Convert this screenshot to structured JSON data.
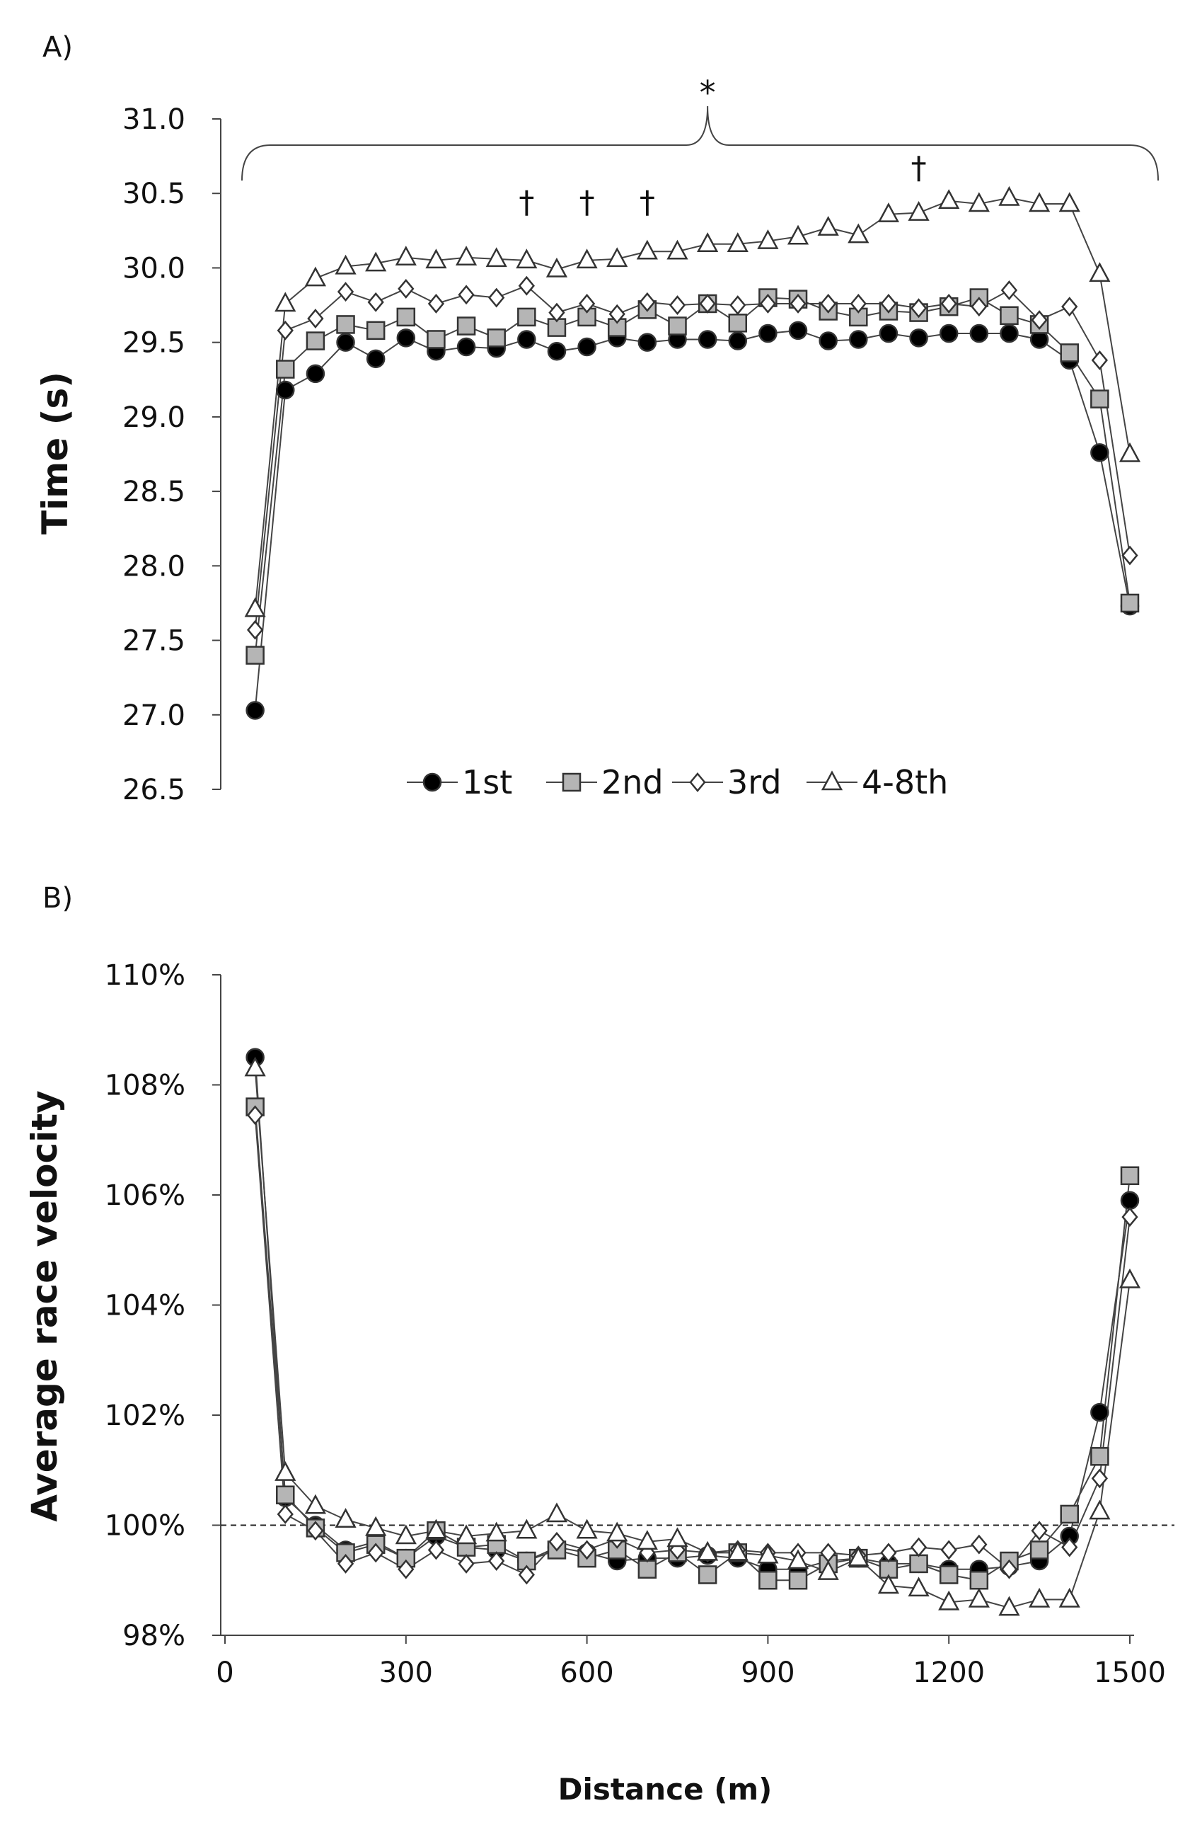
{
  "chart_data": [
    {
      "type": "line",
      "panel_label": "A)",
      "title": "",
      "xlabel": "",
      "ylabel": "Time (s)",
      "ylim": [
        26.5,
        31.0
      ],
      "yticks": [
        "26.5",
        "27.0",
        "27.5",
        "28.0",
        "28.5",
        "29.0",
        "29.5",
        "30.0",
        "30.5",
        "31.0"
      ],
      "x": [
        50,
        100,
        150,
        200,
        250,
        300,
        350,
        400,
        450,
        500,
        550,
        600,
        650,
        700,
        750,
        800,
        850,
        900,
        950,
        1000,
        1050,
        1100,
        1150,
        1200,
        1250,
        1300,
        1350,
        1400,
        1450,
        1500
      ],
      "series": [
        {
          "name": "1st",
          "marker": "circle",
          "fill": "#000000",
          "values": [
            27.03,
            29.18,
            29.29,
            29.5,
            29.39,
            29.53,
            29.44,
            29.47,
            29.46,
            29.52,
            29.44,
            29.47,
            29.53,
            29.5,
            29.52,
            29.52,
            29.51,
            29.56,
            29.58,
            29.51,
            29.52,
            29.56,
            29.53,
            29.56,
            29.56,
            29.56,
            29.52,
            29.38,
            28.76,
            27.73
          ]
        },
        {
          "name": "2nd",
          "marker": "square",
          "fill": "#b5b5b5",
          "values": [
            27.4,
            29.32,
            29.51,
            29.62,
            29.58,
            29.67,
            29.52,
            29.61,
            29.53,
            29.67,
            29.6,
            29.67,
            29.6,
            29.72,
            29.61,
            29.76,
            29.63,
            29.8,
            29.79,
            29.71,
            29.67,
            29.71,
            29.7,
            29.74,
            29.8,
            29.68,
            29.62,
            29.43,
            29.12,
            27.75
          ]
        },
        {
          "name": "3rd",
          "marker": "diamond",
          "fill": "#ffffff",
          "values": [
            27.57,
            29.58,
            29.66,
            29.84,
            29.77,
            29.86,
            29.76,
            29.82,
            29.8,
            29.88,
            29.7,
            29.76,
            29.69,
            29.77,
            29.75,
            29.76,
            29.75,
            29.76,
            29.76,
            29.76,
            29.76,
            29.76,
            29.73,
            29.76,
            29.74,
            29.85,
            29.65,
            29.74,
            29.38,
            28.07
          ]
        },
        {
          "name": "4-8th",
          "marker": "triangle",
          "fill": "#ffffff",
          "values": [
            27.71,
            29.76,
            29.93,
            30.01,
            30.03,
            30.07,
            30.05,
            30.07,
            30.06,
            30.05,
            29.99,
            30.05,
            30.06,
            30.11,
            30.11,
            30.16,
            30.16,
            30.18,
            30.21,
            30.27,
            30.22,
            30.36,
            30.37,
            30.45,
            30.43,
            30.47,
            30.43,
            30.43,
            29.96,
            28.75
          ]
        }
      ],
      "annotations": [
        {
          "text": "*",
          "x": 800,
          "y": 31.1
        },
        {
          "text": "†",
          "x": 500,
          "y": 30.37
        },
        {
          "text": "†",
          "x": 600,
          "y": 30.37
        },
        {
          "text": "†",
          "x": 700,
          "y": 30.37
        },
        {
          "text": "†",
          "x": 1150,
          "y": 30.6
        }
      ],
      "legend": {
        "placement": "bottom-center",
        "entries": [
          "1st",
          "2nd",
          "3rd",
          "4-8th"
        ]
      }
    },
    {
      "type": "line",
      "panel_label": "B)",
      "title": "",
      "xlabel": "Distance (m)",
      "ylabel": "Average race velocity",
      "xlim": [
        0,
        1500
      ],
      "xticks": [
        "0",
        "300",
        "600",
        "900",
        "1200",
        "1500"
      ],
      "ylim": [
        98,
        110
      ],
      "yticks": [
        "98%",
        "100%",
        "102%",
        "104%",
        "106%",
        "108%",
        "110%"
      ],
      "reference_line": {
        "y": 100,
        "style": "dashed"
      },
      "x": [
        50,
        100,
        150,
        200,
        250,
        300,
        350,
        400,
        450,
        500,
        550,
        600,
        650,
        700,
        750,
        800,
        850,
        900,
        950,
        1000,
        1050,
        1100,
        1150,
        1200,
        1250,
        1300,
        1350,
        1400,
        1450,
        1500
      ],
      "series": [
        {
          "name": "1st",
          "marker": "circle",
          "fill": "#000000",
          "values": [
            108.5,
            100.5,
            100.0,
            99.55,
            99.7,
            99.4,
            99.8,
            99.6,
            99.55,
            99.35,
            99.6,
            99.5,
            99.35,
            99.4,
            99.4,
            99.45,
            99.4,
            99.2,
            99.2,
            99.35,
            99.4,
            99.3,
            99.3,
            99.2,
            99.2,
            99.25,
            99.35,
            99.8,
            102.05,
            105.9
          ]
        },
        {
          "name": "2nd",
          "marker": "square",
          "fill": "#b5b5b5",
          "values": [
            107.6,
            100.55,
            99.95,
            99.5,
            99.65,
            99.4,
            99.9,
            99.6,
            99.65,
            99.35,
            99.55,
            99.4,
            99.55,
            99.2,
            99.5,
            99.1,
            99.5,
            99.0,
            99.0,
            99.3,
            99.4,
            99.2,
            99.3,
            99.1,
            99.0,
            99.35,
            99.55,
            100.2,
            101.25,
            106.35
          ]
        },
        {
          "name": "3rd",
          "marker": "diamond",
          "fill": "#ffffff",
          "values": [
            107.45,
            100.2,
            99.9,
            99.3,
            99.5,
            99.2,
            99.55,
            99.3,
            99.35,
            99.1,
            99.7,
            99.55,
            99.75,
            99.5,
            99.55,
            99.5,
            99.55,
            99.5,
            99.5,
            99.5,
            99.45,
            99.5,
            99.6,
            99.55,
            99.65,
            99.2,
            99.9,
            99.6,
            100.85,
            105.6
          ]
        },
        {
          "name": "4-8th",
          "marker": "triangle",
          "fill": "#ffffff",
          "values": [
            108.3,
            100.95,
            100.35,
            100.1,
            99.95,
            99.8,
            99.9,
            99.8,
            99.85,
            99.9,
            100.2,
            99.9,
            99.85,
            99.7,
            99.75,
            99.5,
            99.5,
            99.45,
            99.35,
            99.15,
            99.4,
            98.9,
            98.85,
            98.6,
            98.65,
            98.5,
            98.65,
            98.65,
            100.25,
            104.45
          ]
        }
      ]
    }
  ]
}
